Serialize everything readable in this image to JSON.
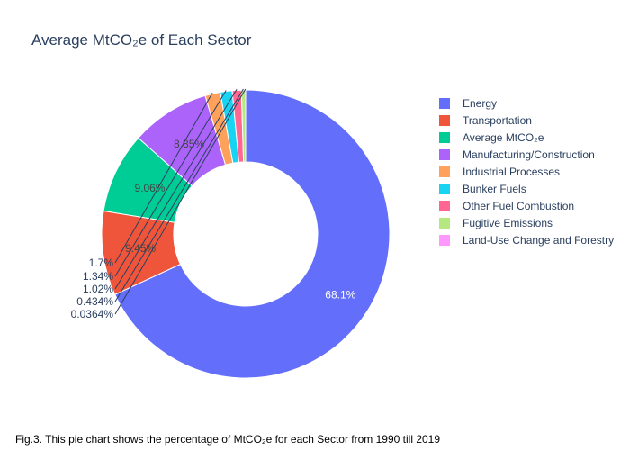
{
  "chart_data": {
    "type": "pie",
    "hole": true,
    "title": "Average MtCO₂e of Each Sector",
    "caption": "Fig.3. This pie chart shows the percentage of MtCO₂e for each Sector from 1990 till 2019",
    "legend_position": "right",
    "slices": [
      {
        "name": "Energy",
        "percent": 68.1,
        "label": "68.1%",
        "color": "#636efa"
      },
      {
        "name": "Transportation",
        "percent": 9.45,
        "label": "9.45%",
        "color": "#EF553B"
      },
      {
        "name": "Average MtCO₂e",
        "percent": 9.06,
        "label": "9.06%",
        "color": "#00cc96"
      },
      {
        "name": "Manufacturing/Construction",
        "percent": 8.85,
        "label": "8.85%",
        "color": "#ab63fa"
      },
      {
        "name": "Industrial Processes",
        "percent": 1.7,
        "label": "1.7%",
        "color": "#FFA15A"
      },
      {
        "name": "Bunker Fuels",
        "percent": 1.34,
        "label": "1.34%",
        "color": "#19d3f3"
      },
      {
        "name": "Other Fuel Combustion",
        "percent": 1.02,
        "label": "1.02%",
        "color": "#FF6692"
      },
      {
        "name": "Fugitive Emissions",
        "percent": 0.434,
        "label": "0.434%",
        "color": "#B6E880"
      },
      {
        "name": "Land-Use Change and Forestry",
        "percent": 0.0364,
        "label": "0.0364%",
        "color": "#FF97FF"
      }
    ]
  }
}
